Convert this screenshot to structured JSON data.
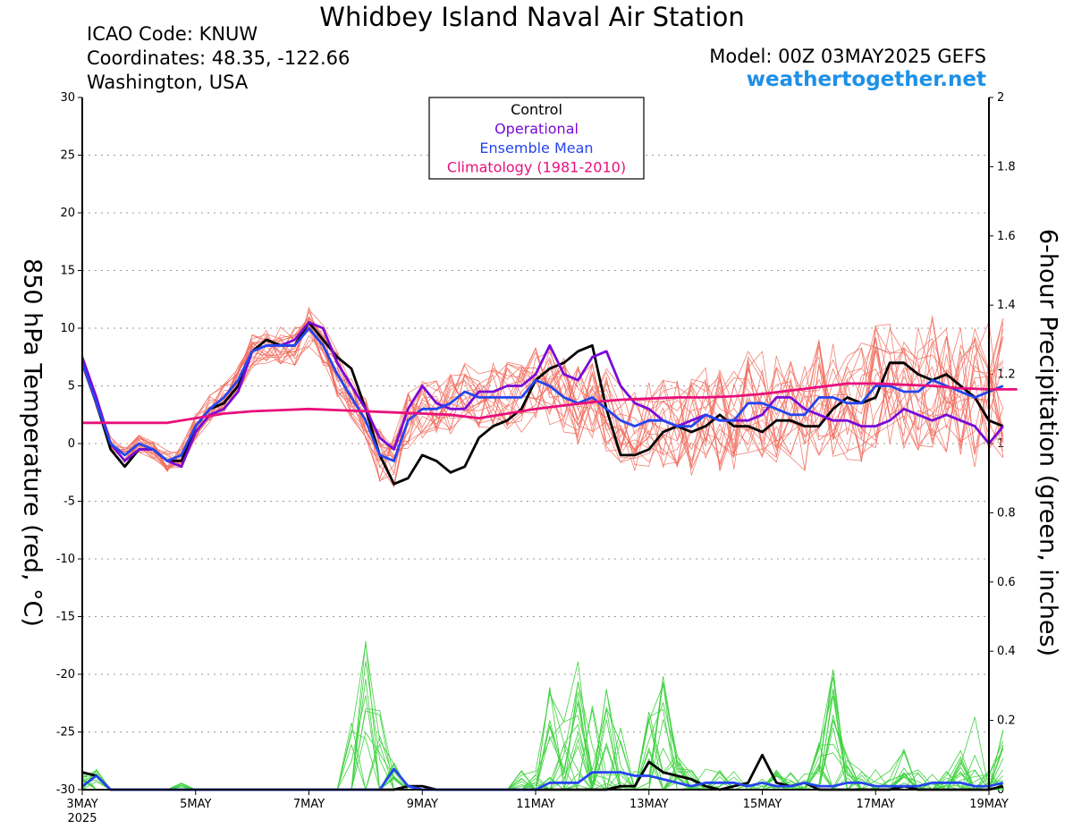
{
  "header": {
    "title": "Whidbey Island Naval Air Station",
    "icao": "ICAO Code: KNUW",
    "coords": "Coordinates: 48.35, -122.66",
    "region": "Washington, USA",
    "model": "Model: 00Z 03MAY2025 GEFS",
    "site": "weathertogether.net"
  },
  "colors": {
    "control": "#000000",
    "operational": "#7a0ad6",
    "ensemble_mean": "#2545ee",
    "climatology": "#e8107c",
    "members_temp": "#f06a5a",
    "members_precip": "#3fd23f"
  },
  "chart_data": {
    "type": "line",
    "ylabel": "850 hPa Temperature (red, °C)",
    "y2label": "6-hour Precipitation (green, inches)",
    "ylim": [
      -30,
      30
    ],
    "y2lim": [
      0,
      2
    ],
    "yticks": [
      "30",
      "25",
      "20",
      "15",
      "10",
      "5",
      "0",
      "-5",
      "-10",
      "-15",
      "-20",
      "-25",
      "-30"
    ],
    "y2ticks": [
      "2",
      "1.8",
      "1.6",
      "1.4",
      "1.2",
      "1",
      "0.8",
      "0.6",
      "0.4",
      "0.2",
      "0"
    ],
    "x_start": "3MAY 2025",
    "x_step_hours": 6,
    "xticks": [
      {
        "day": 0,
        "label": "3MAY",
        "sub": "2025"
      },
      {
        "day": 2,
        "label": "5MAY"
      },
      {
        "day": 4,
        "label": "7MAY"
      },
      {
        "day": 6,
        "label": "9MAY"
      },
      {
        "day": 8,
        "label": "11MAY"
      },
      {
        "day": 10,
        "label": "13MAY"
      },
      {
        "day": 12,
        "label": "15MAY"
      },
      {
        "day": 14,
        "label": "17MAY"
      },
      {
        "day": 16,
        "label": "19MAY"
      }
    ],
    "legend": {
      "placement": "top-center",
      "entries": [
        "Control",
        "Operational",
        "Ensemble Mean",
        "Climatology (1981-2010)"
      ]
    },
    "series": [
      {
        "name": "Control",
        "axis": "temp",
        "values": [
          7,
          3.5,
          -0.5,
          -2,
          -0.5,
          -0.5,
          -1.5,
          -1.5,
          1.5,
          3,
          3.5,
          5,
          8,
          9,
          8.5,
          8.5,
          10.5,
          9,
          7.5,
          6.5,
          3,
          -1,
          -3.5,
          -3,
          -1,
          -1.5,
          -2.5,
          -2,
          0.5,
          1.5,
          2,
          3,
          5.5,
          6.5,
          7,
          8,
          8.5,
          3,
          -1,
          -1,
          -0.5,
          1,
          1.5,
          1,
          1.5,
          2.5,
          1.5,
          1.5,
          1,
          2,
          2,
          1.5,
          1.5,
          3,
          4,
          3.5,
          4,
          7,
          7,
          6,
          5.5,
          6,
          5,
          4,
          2,
          1.5
        ]
      },
      {
        "name": "Operational",
        "axis": "temp",
        "values": [
          7.5,
          4,
          0,
          -1.5,
          -0.5,
          -0.5,
          -1.5,
          -2,
          1,
          2.5,
          3,
          4.5,
          8,
          8.5,
          8.5,
          9,
          10.5,
          10,
          7,
          5,
          3,
          0.5,
          -0.5,
          3,
          5,
          3.5,
          3,
          3,
          4.5,
          4.5,
          5,
          5,
          6,
          8.5,
          6,
          5.5,
          7.5,
          8,
          5,
          3.5,
          3,
          2,
          1.5,
          2,
          2.5,
          2,
          2,
          2,
          2.5,
          4,
          4,
          3,
          2.5,
          2,
          2,
          1.5,
          1.5,
          2,
          3,
          2.5,
          2,
          2.5,
          2,
          1.5,
          0,
          1.5
        ]
      },
      {
        "name": "Ensemble Mean",
        "axis": "temp",
        "values": [
          7,
          3.5,
          0,
          -1,
          0,
          -0.5,
          -1.5,
          -1,
          1.5,
          3,
          4,
          5.5,
          8,
          8.5,
          8.5,
          8.5,
          10,
          8.5,
          6,
          4,
          2,
          -1,
          -1.5,
          2,
          3,
          3,
          3.5,
          4.5,
          4,
          4,
          4,
          4,
          5.5,
          5,
          4,
          3.5,
          4,
          3,
          2,
          1.5,
          2,
          2,
          1.5,
          1.5,
          2.5,
          2,
          2,
          3.5,
          3.5,
          3,
          2.5,
          2.5,
          4,
          4,
          3.5,
          3.5,
          5,
          5,
          4.5,
          4.5,
          5.5,
          5,
          4.5,
          4,
          4.5,
          5
        ]
      },
      {
        "name": "Climatology (1981-2010)",
        "axis": "temp",
        "values": [
          1.8,
          1.8,
          1.8,
          1.8,
          2.2,
          2.6,
          2.8,
          2.9,
          3,
          2.9,
          2.8,
          2.7,
          2.6,
          2.5,
          2.2,
          2.6,
          3,
          3.3,
          3.6,
          3.8,
          3.9,
          4,
          4,
          4.1,
          4.3,
          4.6,
          4.9,
          5.2,
          5.2,
          5.1,
          5,
          4.8,
          4.7,
          4.7
        ]
      },
      {
        "name": "Control",
        "axis": "precip",
        "values": [
          0.05,
          0.04,
          0,
          0,
          0,
          0,
          0,
          0,
          0,
          0,
          0,
          0,
          0,
          0,
          0,
          0,
          0,
          0,
          0,
          0,
          0,
          0,
          0,
          0.01,
          0.01,
          0,
          0,
          0,
          0,
          0,
          0,
          0,
          0,
          0,
          0,
          0,
          0,
          0,
          0.01,
          0.01,
          0.08,
          0.05,
          0.04,
          0.03,
          0.01,
          0,
          0.01,
          0.02,
          0.1,
          0.02,
          0.01,
          0.02,
          0,
          0,
          0,
          0,
          0,
          0,
          0.01,
          0,
          0,
          0,
          0,
          0,
          0,
          0.01
        ]
      },
      {
        "name": "Ensemble Mean",
        "axis": "precip",
        "values": [
          0.01,
          0.04,
          0,
          0,
          0,
          0,
          0,
          0,
          0,
          0,
          0,
          0,
          0,
          0,
          0,
          0,
          0,
          0,
          0,
          0,
          0,
          0,
          0.06,
          0.01,
          0,
          0,
          0,
          0,
          0,
          0,
          0,
          0,
          0,
          0.02,
          0.02,
          0.02,
          0.05,
          0.05,
          0.05,
          0.04,
          0.04,
          0.03,
          0.02,
          0.01,
          0.02,
          0.02,
          0.02,
          0.01,
          0.02,
          0.01,
          0.01,
          0.02,
          0.01,
          0.01,
          0.02,
          0.02,
          0.01,
          0.01,
          0.01,
          0.01,
          0.02,
          0.02,
          0.02,
          0.01,
          0.01,
          0.02
        ]
      }
    ]
  }
}
